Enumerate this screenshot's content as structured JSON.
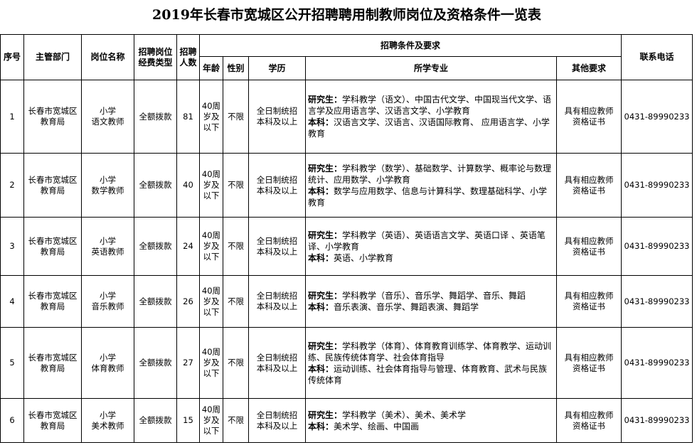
{
  "title": "2019年长春市宽城区公开招聘聘用制教师岗位及资格条件一览表",
  "headers": {
    "seq": "序号",
    "dept": "主管部门",
    "position": "岗位名称",
    "fund": "招聘岗位\n经费类型",
    "count": "招聘\n人数",
    "conditions": "招聘条件及要求",
    "age": "年龄",
    "gender": "性别",
    "education": "学历",
    "major": "所学专业",
    "other": "其他要求",
    "phone": "联系电话"
  },
  "grad_label": "研究生：",
  "ug_label": "本科：",
  "rows": [
    {
      "seq": "1",
      "dept": "长春市宽城区\n教育局",
      "position": "小学\n语文教师",
      "fund": "全额拨款",
      "count": "81",
      "age": "40周\n岁及\n以下",
      "gender": "不限",
      "education": "全日制统招\n本科及以上",
      "grad": "学科教学（语文）、中国古代文学、中国现当代文学、语言学及应用语言学、汉语言文学、小学教育",
      "ug": "汉语言文学、汉语言、汉语国际教育、 应用语言学、小学教育",
      "other": "具有相应教师\n资格证书",
      "phone": "0431-89990233"
    },
    {
      "seq": "2",
      "dept": "长春市宽城区\n教育局",
      "position": "小学\n数学教师",
      "fund": "全额拨款",
      "count": "40",
      "age": "40周\n岁及\n以下",
      "gender": "不限",
      "education": "全日制统招\n本科及以上",
      "grad": "学科教学（数学）、基础数学、计算数学、概率论与数理统计、应用数学、小学教育",
      "ug": "数学与应用数学、信息与计算科学、数理基础科学、小学教育",
      "other": "具有相应教师\n资格证书",
      "phone": "0431-89990233"
    },
    {
      "seq": "3",
      "dept": "长春市宽城区\n教育局",
      "position": "小学\n英语教师",
      "fund": "全额拨款",
      "count": "24",
      "age": "40周\n岁及\n以下",
      "gender": "不限",
      "education": "全日制统招\n本科及以上",
      "grad": "学科教学（英语）、英语语言文学、英语口译 、英语笔译、小学教育",
      "ug": "英语、小学教育",
      "other": "具有相应教师\n资格证书",
      "phone": "0431-89990233"
    },
    {
      "seq": "4",
      "dept": "长春市宽城区\n教育局",
      "position": "小学\n音乐教师",
      "fund": "全额拨款",
      "count": "26",
      "age": "40周\n岁及\n以下",
      "gender": "不限",
      "education": "全日制统招\n本科及以上",
      "grad": "学科教学（音乐）、音乐学、舞蹈学、音乐、舞蹈",
      "ug": "音乐表演、音乐学、舞蹈表演、舞蹈学",
      "other": "具有相应教师\n资格证书",
      "phone": "0431-89990233"
    },
    {
      "seq": "5",
      "dept": "长春市宽城区\n教育局",
      "position": "小学\n体育教师",
      "fund": "全额拨款",
      "count": "27",
      "age": "40周\n岁及\n以下",
      "gender": "不限",
      "education": "全日制统招\n本科及以上",
      "grad": "学科教学（体育）、体育教育训练学、体育教学、运动训练、民族传统体育学、社会体育指导",
      "ug": "运动训练、社会体育指导与管理、体育教育、武术与民族传统体育",
      "other": "具有相应教师\n资格证书",
      "phone": "0431-89990233"
    },
    {
      "seq": "6",
      "dept": "长春市宽城区\n教育局",
      "position": "小学\n美术教师",
      "fund": "全额拨款",
      "count": "15",
      "age": "40周\n岁及\n以下",
      "gender": "不限",
      "education": "全日制统招\n本科及以上",
      "grad": "学科教学（美术）、美术、美术学",
      "ug": "美术学、绘画、中国画",
      "other": "具有相应教师\n资格证书",
      "phone": "0431-89990233"
    }
  ]
}
